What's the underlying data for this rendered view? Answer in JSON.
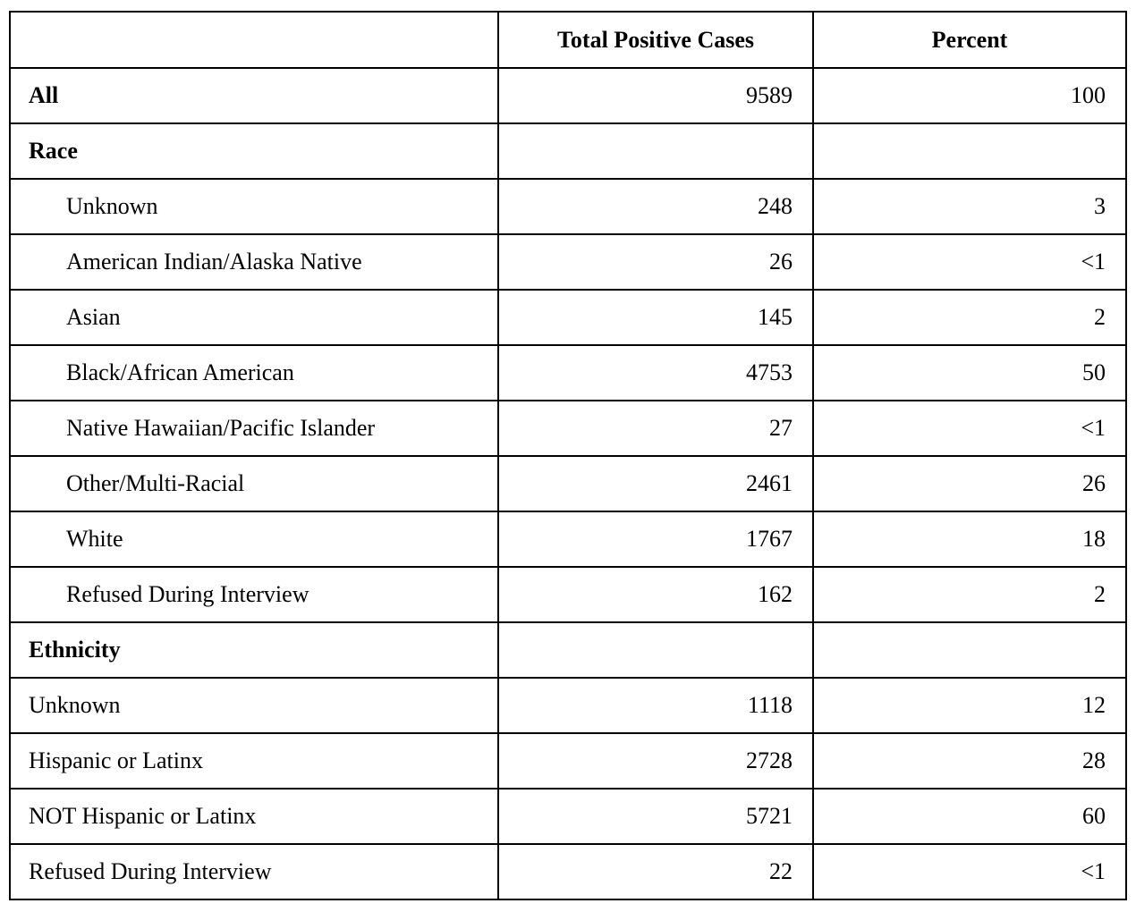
{
  "table": {
    "columns": [
      "",
      "Total Positive Cases",
      "Percent"
    ],
    "rows": [
      {
        "label": "All",
        "bold": true,
        "indent": false,
        "cases": "9589",
        "percent": "100"
      },
      {
        "label": "Race",
        "bold": true,
        "indent": false,
        "cases": "",
        "percent": ""
      },
      {
        "label": "Unknown",
        "bold": false,
        "indent": true,
        "cases": "248",
        "percent": "3"
      },
      {
        "label": "American Indian/Alaska Native",
        "bold": false,
        "indent": true,
        "cases": "26",
        "percent": "<1"
      },
      {
        "label": "Asian",
        "bold": false,
        "indent": true,
        "cases": "145",
        "percent": "2"
      },
      {
        "label": "Black/African American",
        "bold": false,
        "indent": true,
        "cases": "4753",
        "percent": "50"
      },
      {
        "label": "Native Hawaiian/Pacific Islander",
        "bold": false,
        "indent": true,
        "cases": "27",
        "percent": "<1"
      },
      {
        "label": "Other/Multi-Racial",
        "bold": false,
        "indent": true,
        "cases": "2461",
        "percent": "26"
      },
      {
        "label": "White",
        "bold": false,
        "indent": true,
        "cases": "1767",
        "percent": "18"
      },
      {
        "label": "Refused During Interview",
        "bold": false,
        "indent": true,
        "cases": "162",
        "percent": "2"
      },
      {
        "label": "Ethnicity",
        "bold": true,
        "indent": false,
        "cases": "",
        "percent": ""
      },
      {
        "label": "Unknown",
        "bold": false,
        "indent": false,
        "cases": "1118",
        "percent": "12"
      },
      {
        "label": "Hispanic or Latinx",
        "bold": false,
        "indent": false,
        "cases": "2728",
        "percent": "28"
      },
      {
        "label": "NOT Hispanic or Latinx",
        "bold": false,
        "indent": false,
        "cases": "5721",
        "percent": "60"
      },
      {
        "label": "Refused During Interview",
        "bold": false,
        "indent": false,
        "cases": "22",
        "percent": "<1"
      }
    ]
  }
}
